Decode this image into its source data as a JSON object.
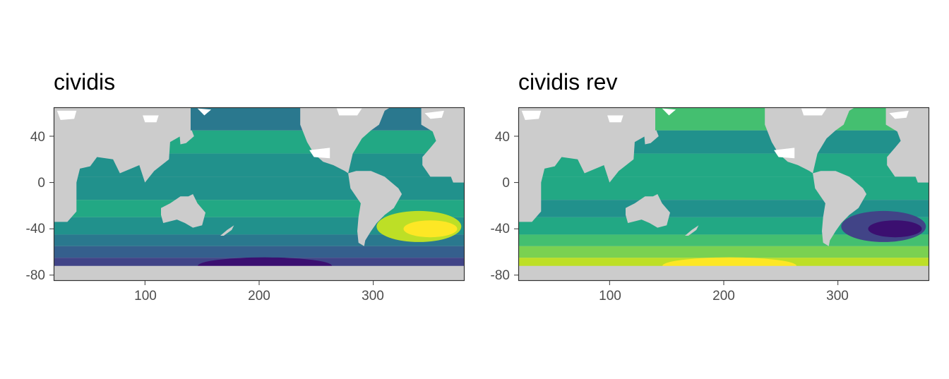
{
  "colors": {
    "land": "#cccccc",
    "ice": "#ffffff",
    "frame": "#333333",
    "cividis_like_scale": [
      "#3b0f70",
      "#414487",
      "#355f8d",
      "#2a788e",
      "#21918c",
      "#22a884",
      "#44bf70",
      "#7ad151",
      "#bddf26",
      "#fde725"
    ]
  },
  "panels": [
    {
      "title": "cividis",
      "reverse": false
    },
    {
      "title": "cividis rev",
      "reverse": true
    }
  ],
  "axes": {
    "x_ticks": [
      "100",
      "200",
      "300"
    ],
    "y_ticks": [
      "40",
      "0",
      "-40",
      "-80"
    ]
  },
  "chart_data": {
    "type": "heatmap",
    "xlim": [
      20,
      380
    ],
    "ylim": [
      -85,
      65
    ],
    "x_tick_values": [
      100,
      200,
      300
    ],
    "y_tick_values": [
      40,
      0,
      -40,
      -80
    ],
    "grid": false,
    "legend": "none"
  }
}
